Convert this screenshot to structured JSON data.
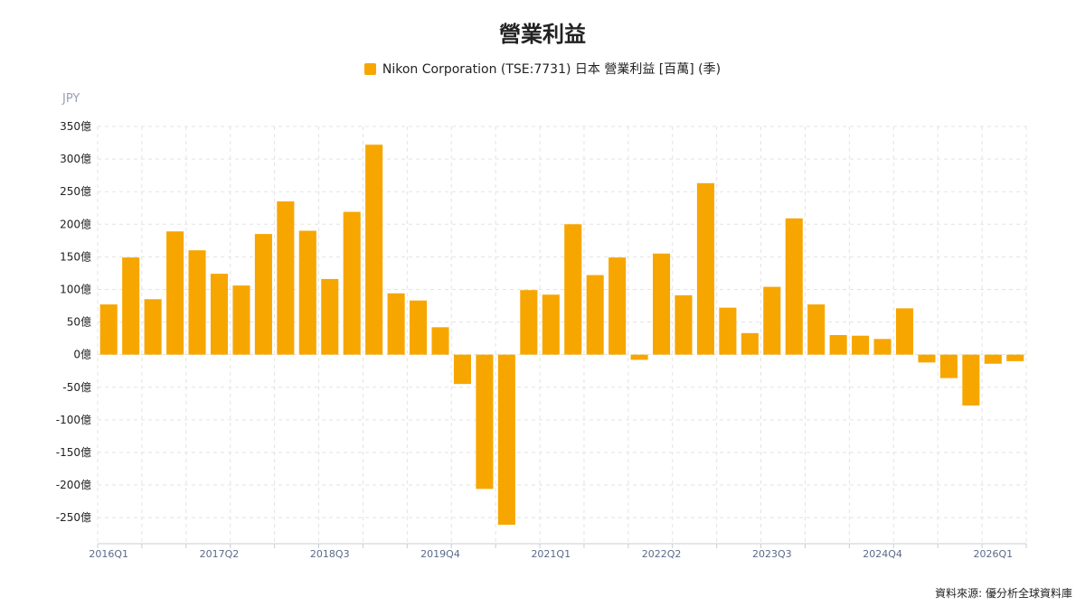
{
  "chart_data": {
    "type": "bar",
    "title": "營業利益",
    "ylabel": "JPY",
    "source": "資料來源: 優分析全球資料庫",
    "series": [
      {
        "name": "Nikon Corporation (TSE:7731) 日本 營業利益 [百萬] (季)",
        "color": "#F7A600",
        "values": [
          77,
          149,
          85,
          189,
          160,
          124,
          106,
          185,
          235,
          190,
          116,
          219,
          322,
          94,
          83,
          42,
          -45,
          -206,
          -261,
          99,
          92,
          200,
          122,
          149,
          -8,
          155,
          91,
          263,
          72,
          33,
          104,
          209,
          77,
          30,
          29,
          24,
          71,
          -12,
          -36,
          -78,
          -14,
          -10
        ]
      }
    ],
    "categories": [
      "2016Q1",
      "2016Q2",
      "2016Q3",
      "2016Q4",
      "2017Q1",
      "2017Q2",
      "2017Q3",
      "2017Q4",
      "2018Q1",
      "2018Q2",
      "2018Q3",
      "2018Q4",
      "2019Q1",
      "2019Q2",
      "2019Q3",
      "2019Q4",
      "2020Q1",
      "2020Q2",
      "2020Q3",
      "2020Q4",
      "2021Q1",
      "2021Q2",
      "2021Q3",
      "2021Q4",
      "2022Q1",
      "2022Q2",
      "2022Q3",
      "2022Q4",
      "2023Q1",
      "2023Q2",
      "2023Q3",
      "2023Q4",
      "2024Q1",
      "2024Q2",
      "2024Q3",
      "2024Q4",
      "2025Q1",
      "2025Q2",
      "2025Q3",
      "2025Q4",
      "2026Q1",
      "2026Q2"
    ],
    "x_tick_labels": [
      "2016Q1",
      "2017Q2",
      "2018Q3",
      "2019Q4",
      "2021Q1",
      "2022Q2",
      "2023Q3",
      "2024Q4",
      "2026Q1"
    ],
    "y_ticks": [
      350,
      300,
      250,
      200,
      150,
      100,
      50,
      0,
      -50,
      -100,
      -150,
      -200,
      -250
    ],
    "y_tick_suffix": "億",
    "ylim": [
      -290,
      350
    ],
    "grid": true,
    "legend_position": "top-center"
  }
}
